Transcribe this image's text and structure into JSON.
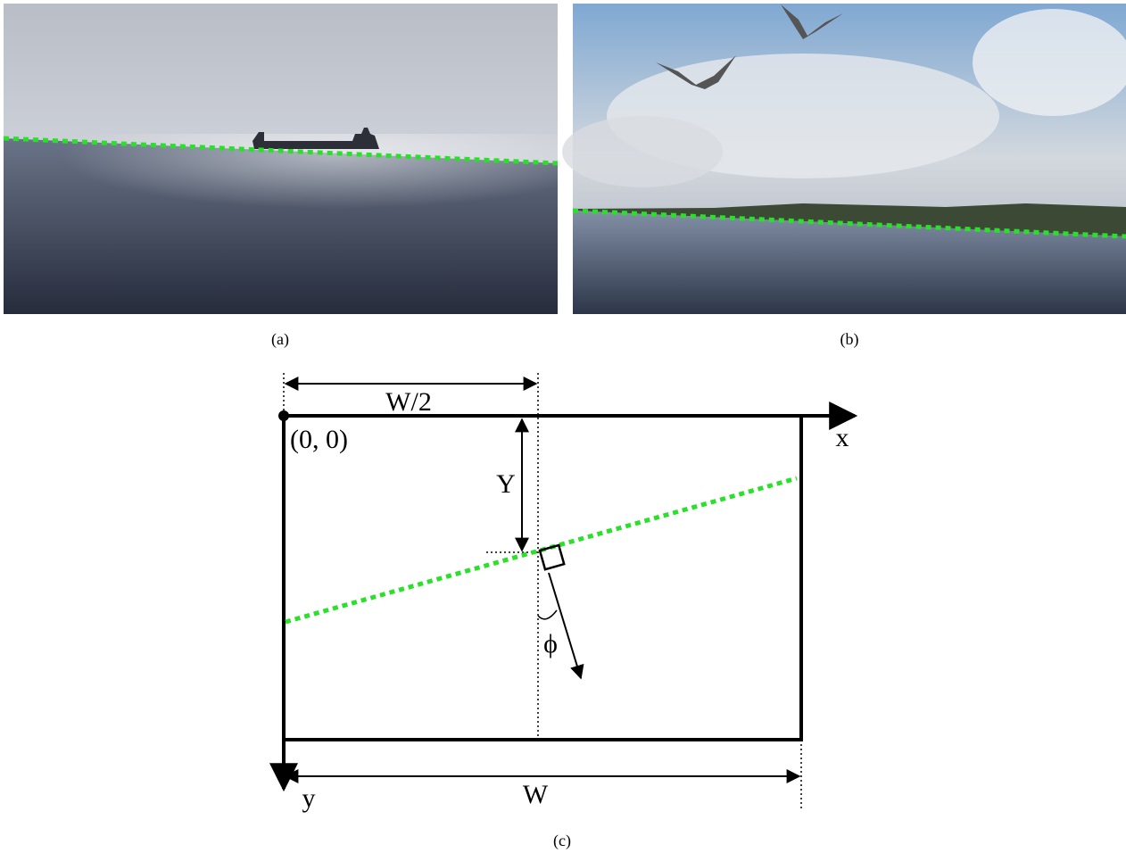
{
  "captions": [
    "(a)",
    "(b)",
    "(c)"
  ],
  "diagram": {
    "half_width": "W/2",
    "origin": "(0, 0)",
    "x_axis": "x",
    "y_axis": "y",
    "offset": "Y",
    "angle": "ϕ",
    "width": "W"
  }
}
